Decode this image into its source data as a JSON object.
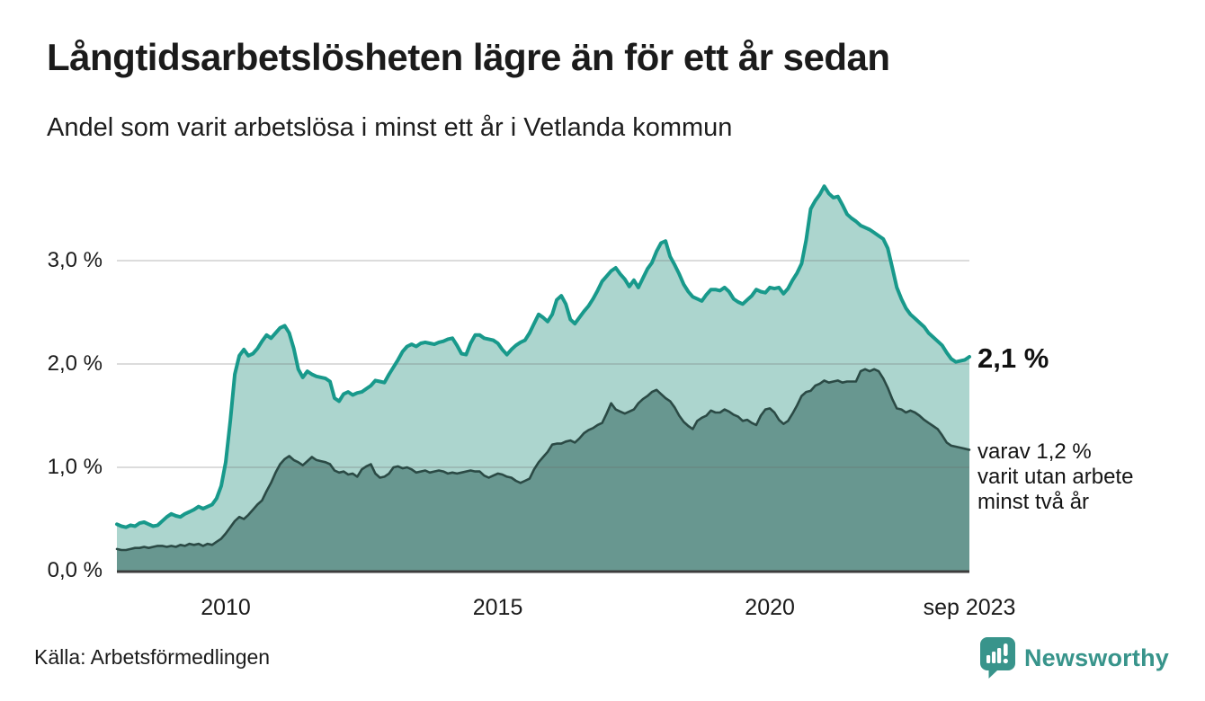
{
  "header": {
    "title": "Långtidsarbetslösheten lägre än för ett år sedan",
    "subtitle": "Andel som varit arbetslösa i minst ett år i Vetlanda kommun"
  },
  "annotations": {
    "value_label": "2,1 %",
    "secondary_lines": [
      "varav 1,2 %",
      "varit utan arbete",
      "minst två år"
    ]
  },
  "footer": {
    "source_label": "Källa: Arbetsförmedlingen",
    "brand_name": "Newsworthy",
    "brand_icon": "bar-chart-speech-bubble"
  },
  "colors": {
    "line_total": "#18998b",
    "fill_total": "#acd5ce",
    "line_two_year": "#2b4a45",
    "fill_two_year": "#689790",
    "gridline": "#d8d8d8",
    "baseline": "#3c3c3c",
    "brand": "#38948b",
    "text": "#1b1b1b"
  },
  "chart_data": {
    "type": "area",
    "title": "Andel som varit arbetslösa i minst ett år i Vetlanda kommun",
    "xlabel": "",
    "ylabel": "",
    "unit": "%",
    "grid": "horizontal",
    "legend": "none",
    "x_axis": {
      "start": "2008-01",
      "end": "2023-09",
      "interval": "monthly"
    },
    "x_domain": [
      2008.0,
      2023.667
    ],
    "ylim": [
      0,
      3.83
    ],
    "x_tick_labels": [
      "2010",
      "2015",
      "2020",
      "sep 2023"
    ],
    "x_tick_years": [
      2010,
      2015,
      2020,
      2023.667
    ],
    "y_tick_labels": [
      "3,0 %",
      "2,0 %",
      "1,0 %",
      "0,0 %"
    ],
    "y_tick_values": [
      3,
      2,
      1,
      0
    ],
    "series": [
      {
        "name": "Andel arbetslösa minst ett år",
        "latest_label": "2,1 %",
        "color": "#18998b",
        "fill": "#acd5ce",
        "values": [
          0.45,
          0.43,
          0.42,
          0.44,
          0.43,
          0.46,
          0.47,
          0.45,
          0.43,
          0.44,
          0.48,
          0.52,
          0.55,
          0.53,
          0.52,
          0.55,
          0.57,
          0.59,
          0.62,
          0.6,
          0.62,
          0.64,
          0.7,
          0.82,
          1.05,
          1.45,
          1.9,
          2.08,
          2.14,
          2.08,
          2.1,
          2.15,
          2.22,
          2.28,
          2.25,
          2.3,
          2.35,
          2.37,
          2.3,
          2.15,
          1.95,
          1.87,
          1.93,
          1.9,
          1.88,
          1.87,
          1.86,
          1.83,
          1.67,
          1.64,
          1.71,
          1.73,
          1.7,
          1.72,
          1.73,
          1.76,
          1.79,
          1.84,
          1.83,
          1.82,
          1.9,
          1.97,
          2.04,
          2.12,
          2.17,
          2.19,
          2.17,
          2.2,
          2.21,
          2.2,
          2.19,
          2.21,
          2.22,
          2.24,
          2.25,
          2.18,
          2.1,
          2.09,
          2.2,
          2.28,
          2.28,
          2.25,
          2.24,
          2.23,
          2.2,
          2.14,
          2.09,
          2.14,
          2.18,
          2.21,
          2.23,
          2.3,
          2.39,
          2.48,
          2.45,
          2.41,
          2.48,
          2.62,
          2.66,
          2.58,
          2.43,
          2.39,
          2.45,
          2.51,
          2.56,
          2.63,
          2.71,
          2.8,
          2.85,
          2.9,
          2.93,
          2.87,
          2.82,
          2.75,
          2.81,
          2.74,
          2.83,
          2.92,
          2.98,
          3.09,
          3.17,
          3.19,
          3.04,
          2.96,
          2.87,
          2.77,
          2.7,
          2.65,
          2.63,
          2.61,
          2.67,
          2.72,
          2.72,
          2.71,
          2.74,
          2.7,
          2.63,
          2.6,
          2.58,
          2.62,
          2.66,
          2.72,
          2.7,
          2.69,
          2.74,
          2.73,
          2.74,
          2.68,
          2.73,
          2.81,
          2.88,
          2.97,
          3.2,
          3.5,
          3.58,
          3.64,
          3.72,
          3.65,
          3.61,
          3.62,
          3.54,
          3.45,
          3.41,
          3.38,
          3.34,
          3.32,
          3.3,
          3.27,
          3.24,
          3.21,
          3.12,
          2.93,
          2.74,
          2.63,
          2.54,
          2.48,
          2.44,
          2.4,
          2.36,
          2.3,
          2.26,
          2.22,
          2.18,
          2.11,
          2.05,
          2.02,
          2.03,
          2.04,
          2.07
        ]
      },
      {
        "name": "Andel arbetslösa minst två år",
        "latest_label": "1,2 %",
        "color": "#2b4a45",
        "fill": "#689790",
        "values": [
          0.21,
          0.2,
          0.2,
          0.21,
          0.22,
          0.22,
          0.23,
          0.22,
          0.23,
          0.24,
          0.24,
          0.23,
          0.24,
          0.23,
          0.25,
          0.24,
          0.26,
          0.25,
          0.26,
          0.24,
          0.26,
          0.25,
          0.28,
          0.31,
          0.36,
          0.42,
          0.48,
          0.52,
          0.5,
          0.54,
          0.59,
          0.64,
          0.68,
          0.77,
          0.85,
          0.95,
          1.03,
          1.08,
          1.11,
          1.07,
          1.05,
          1.02,
          1.06,
          1.1,
          1.07,
          1.06,
          1.05,
          1.03,
          0.97,
          0.95,
          0.96,
          0.93,
          0.94,
          0.91,
          0.98,
          1.01,
          1.03,
          0.94,
          0.9,
          0.91,
          0.94,
          1.0,
          1.01,
          0.99,
          1.0,
          0.98,
          0.95,
          0.96,
          0.97,
          0.95,
          0.96,
          0.97,
          0.96,
          0.94,
          0.95,
          0.94,
          0.95,
          0.96,
          0.97,
          0.96,
          0.96,
          0.92,
          0.9,
          0.92,
          0.94,
          0.93,
          0.91,
          0.9,
          0.87,
          0.85,
          0.87,
          0.89,
          0.98,
          1.05,
          1.1,
          1.15,
          1.22,
          1.23,
          1.23,
          1.25,
          1.26,
          1.24,
          1.28,
          1.33,
          1.36,
          1.38,
          1.41,
          1.43,
          1.52,
          1.62,
          1.56,
          1.54,
          1.52,
          1.54,
          1.56,
          1.62,
          1.66,
          1.69,
          1.73,
          1.75,
          1.71,
          1.67,
          1.64,
          1.58,
          1.5,
          1.44,
          1.4,
          1.37,
          1.45,
          1.48,
          1.5,
          1.55,
          1.53,
          1.53,
          1.56,
          1.54,
          1.51,
          1.49,
          1.45,
          1.46,
          1.43,
          1.41,
          1.5,
          1.56,
          1.57,
          1.53,
          1.46,
          1.42,
          1.45,
          1.52,
          1.6,
          1.69,
          1.73,
          1.74,
          1.79,
          1.81,
          1.84,
          1.82,
          1.83,
          1.84,
          1.82,
          1.83,
          1.83,
          1.83,
          1.93,
          1.95,
          1.93,
          1.95,
          1.93,
          1.86,
          1.77,
          1.66,
          1.57,
          1.56,
          1.53,
          1.55,
          1.53,
          1.5,
          1.46,
          1.43,
          1.4,
          1.37,
          1.31,
          1.24,
          1.21,
          1.2,
          1.19,
          1.18,
          1.17
        ]
      }
    ]
  }
}
